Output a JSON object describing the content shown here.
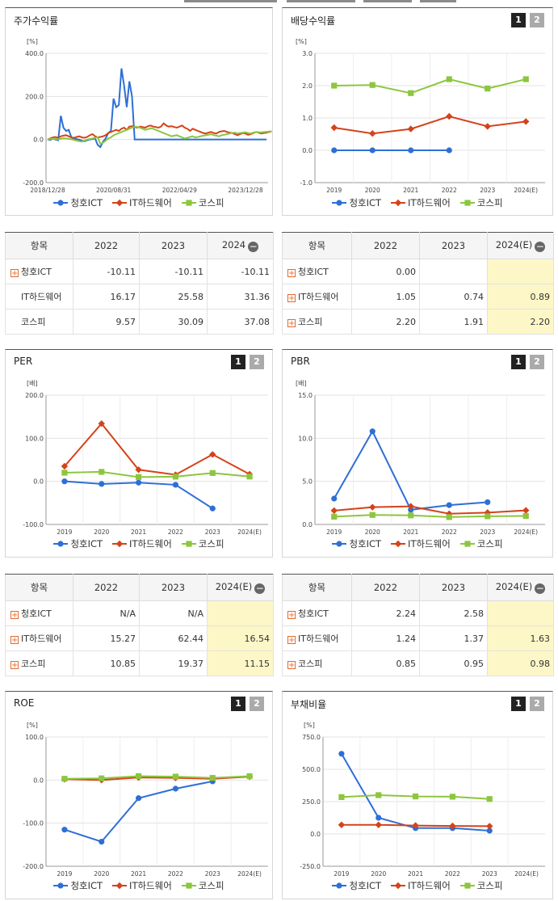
{
  "colors": {
    "blue": "#2e6fd6",
    "red": "#d4431a",
    "green": "#8cc63e"
  },
  "legend": [
    "청호ICT",
    "IT하드웨어",
    "코스피"
  ],
  "pager": [
    "1",
    "2"
  ],
  "collapse_symbol": "−",
  "expand_symbol": "+",
  "price_chart": {
    "title": "주가수익률",
    "unit": "[%]",
    "chart_data": {
      "type": "line",
      "ylim": [
        -200,
        400
      ],
      "yticks": [
        "400.0",
        "200.0",
        "0.0",
        "-200.0"
      ],
      "xticks": [
        "2018/12/28",
        "2020/08/31",
        "2022/04/29",
        "2023/12/28"
      ],
      "series": [
        {
          "name": "청호ICT",
          "values": [
            0,
            -2,
            5,
            0,
            -3,
            110,
            55,
            40,
            45,
            10,
            5,
            2,
            0,
            -5,
            -8,
            -3,
            0,
            2,
            5,
            -25,
            -35,
            -10,
            5,
            30,
            40,
            190,
            150,
            160,
            330,
            250,
            150,
            270,
            200,
            0,
            0,
            0,
            0,
            0,
            0,
            0,
            0,
            0,
            0,
            0,
            0,
            0,
            0,
            0,
            0,
            0,
            0,
            0,
            0,
            0,
            0,
            0,
            0,
            0,
            0,
            0,
            0,
            0,
            0,
            0,
            0,
            0,
            0,
            0,
            0,
            0,
            0,
            0,
            0,
            0,
            0,
            0,
            0,
            0,
            0,
            0,
            0,
            0,
            0,
            0
          ]
        },
        {
          "name": "IT하드웨어",
          "values": [
            0,
            5,
            10,
            12,
            8,
            15,
            18,
            20,
            15,
            10,
            8,
            12,
            15,
            10,
            8,
            12,
            20,
            25,
            15,
            10,
            12,
            15,
            20,
            30,
            35,
            40,
            45,
            40,
            50,
            55,
            45,
            60,
            62,
            58,
            55,
            60,
            58,
            55,
            62,
            65,
            60,
            58,
            55,
            60,
            75,
            65,
            60,
            62,
            58,
            55,
            60,
            65,
            55,
            50,
            40,
            50,
            45,
            40,
            35,
            30,
            28,
            32,
            35,
            30,
            28,
            35,
            38,
            40,
            35,
            32,
            30,
            25,
            20,
            25,
            30,
            28,
            22,
            25,
            30,
            35,
            32,
            28,
            30,
            32,
            35,
            38
          ]
        },
        {
          "name": "코스피",
          "values": [
            0,
            2,
            5,
            3,
            1,
            4,
            6,
            5,
            3,
            1,
            -2,
            -5,
            -8,
            -10,
            -5,
            0,
            2,
            5,
            8,
            10,
            -20,
            -15,
            -5,
            5,
            10,
            20,
            25,
            30,
            35,
            40,
            45,
            50,
            55,
            60,
            58,
            55,
            50,
            45,
            48,
            52,
            50,
            45,
            40,
            35,
            30,
            25,
            20,
            15,
            18,
            20,
            15,
            10,
            5,
            8,
            12,
            15,
            10,
            12,
            15,
            18,
            20,
            22,
            25,
            20,
            18,
            15,
            20,
            22,
            25,
            28,
            30,
            32,
            28,
            30,
            32,
            34,
            30,
            28,
            32,
            35,
            34,
            33,
            35,
            36,
            37,
            38
          ]
        }
      ]
    }
  },
  "dividend_chart": {
    "title": "배당수익률",
    "unit": "[%]",
    "chart_data": {
      "type": "line",
      "categories": [
        "2019",
        "2020",
        "2021",
        "2022",
        "2023",
        "2024(E)"
      ],
      "ylim": [
        -1.0,
        3.0
      ],
      "yticks": [
        "3.0",
        "2.0",
        "1.0",
        "0.0",
        "-1.0"
      ],
      "series": [
        {
          "name": "청호ICT",
          "values": [
            0.0,
            0.0,
            0.0,
            0.0,
            null,
            null
          ]
        },
        {
          "name": "IT하드웨어",
          "values": [
            0.7,
            0.52,
            0.66,
            1.05,
            0.74,
            0.89
          ]
        },
        {
          "name": "코스피",
          "values": [
            2.0,
            2.02,
            1.77,
            2.2,
            1.91,
            2.2
          ]
        }
      ]
    }
  },
  "per_chart": {
    "title": "PER",
    "unit": "[배]",
    "chart_data": {
      "type": "line",
      "categories": [
        "2019",
        "2020",
        "2021",
        "2022",
        "2023",
        "2024(E)"
      ],
      "ylim": [
        -100,
        200
      ],
      "yticks": [
        "200.0",
        "100.0",
        "0.0",
        "-100.0"
      ],
      "series": [
        {
          "name": "청호ICT",
          "values": [
            0,
            -6,
            -3,
            -8,
            -63,
            null
          ]
        },
        {
          "name": "IT하드웨어",
          "values": [
            35,
            134,
            27,
            15.27,
            62.44,
            16.54
          ]
        },
        {
          "name": "코스피",
          "values": [
            20,
            22,
            10,
            10.85,
            19.37,
            11.15
          ]
        }
      ]
    }
  },
  "pbr_chart": {
    "title": "PBR",
    "unit": "[배]",
    "chart_data": {
      "type": "line",
      "categories": [
        "2019",
        "2020",
        "2021",
        "2022",
        "2023",
        "2024(E)"
      ],
      "ylim": [
        0,
        15
      ],
      "yticks": [
        "15.0",
        "10.0",
        "5.0",
        "0.0"
      ],
      "series": [
        {
          "name": "청호ICT",
          "values": [
            3.0,
            10.8,
            1.7,
            2.24,
            2.58,
            null
          ]
        },
        {
          "name": "IT하드웨어",
          "values": [
            1.6,
            2.0,
            2.1,
            1.24,
            1.37,
            1.63
          ]
        },
        {
          "name": "코스피",
          "values": [
            0.9,
            1.1,
            1.05,
            0.85,
            0.95,
            0.98
          ]
        }
      ]
    }
  },
  "roe_chart": {
    "title": "ROE",
    "unit": "[%]",
    "chart_data": {
      "type": "line",
      "categories": [
        "2019",
        "2020",
        "2021",
        "2022",
        "2023",
        "2024(E)"
      ],
      "ylim": [
        -200,
        100
      ],
      "yticks": [
        "100.0",
        "0.0",
        "-100.0",
        "-200.0"
      ],
      "series": [
        {
          "name": "청호ICT",
          "values": [
            -115,
            -143,
            -42,
            -20,
            -3,
            null
          ]
        },
        {
          "name": "IT하드웨어",
          "values": [
            2,
            0,
            6,
            5,
            3,
            8
          ]
        },
        {
          "name": "코스피",
          "values": [
            3,
            4,
            9,
            8,
            5,
            9
          ]
        }
      ]
    }
  },
  "debt_chart": {
    "title": "부채비율",
    "unit": "[%]",
    "chart_data": {
      "type": "line",
      "categories": [
        "2019",
        "2020",
        "2021",
        "2022",
        "2023",
        "2024(E)"
      ],
      "ylim": [
        -250,
        750
      ],
      "yticks": [
        "750.0",
        "500.0",
        "250.0",
        "0.0",
        "-250.0"
      ],
      "series": [
        {
          "name": "청호ICT",
          "values": [
            620,
            125,
            45,
            45,
            25,
            null
          ]
        },
        {
          "name": "IT하드웨어",
          "values": [
            70,
            70,
            65,
            62,
            60,
            null
          ]
        },
        {
          "name": "코스피",
          "values": [
            285,
            300,
            290,
            288,
            270,
            null
          ]
        }
      ]
    }
  },
  "tables": {
    "price": {
      "headers": [
        "항목",
        "2022",
        "2023",
        "2024"
      ],
      "rows": [
        {
          "name": "청호ICT",
          "plus": true,
          "v": [
            "-10.11",
            "-10.11",
            "-10.11"
          ]
        },
        {
          "name": "IT하드웨어",
          "plus": false,
          "v": [
            "16.17",
            "25.58",
            "31.36"
          ]
        },
        {
          "name": "코스피",
          "plus": false,
          "v": [
            "9.57",
            "30.09",
            "37.08"
          ]
        }
      ]
    },
    "dividend": {
      "headers": [
        "항목",
        "2022",
        "2023",
        "2024(E)"
      ],
      "rows": [
        {
          "name": "청호ICT",
          "plus": true,
          "v": [
            "0.00",
            "",
            ""
          ]
        },
        {
          "name": "IT하드웨어",
          "plus": true,
          "v": [
            "1.05",
            "0.74",
            "0.89"
          ]
        },
        {
          "name": "코스피",
          "plus": true,
          "v": [
            "2.20",
            "1.91",
            "2.20"
          ]
        }
      ]
    },
    "per": {
      "headers": [
        "항목",
        "2022",
        "2023",
        "2024(E)"
      ],
      "rows": [
        {
          "name": "청호ICT",
          "plus": true,
          "v": [
            "N/A",
            "N/A",
            ""
          ]
        },
        {
          "name": "IT하드웨어",
          "plus": true,
          "v": [
            "15.27",
            "62.44",
            "16.54"
          ]
        },
        {
          "name": "코스피",
          "plus": true,
          "v": [
            "10.85",
            "19.37",
            "11.15"
          ]
        }
      ]
    },
    "pbr": {
      "headers": [
        "항목",
        "2022",
        "2023",
        "2024(E)"
      ],
      "rows": [
        {
          "name": "청호ICT",
          "plus": true,
          "v": [
            "2.24",
            "2.58",
            ""
          ]
        },
        {
          "name": "IT하드웨어",
          "plus": true,
          "v": [
            "1.24",
            "1.37",
            "1.63"
          ]
        },
        {
          "name": "코스피",
          "plus": true,
          "v": [
            "0.85",
            "0.95",
            "0.98"
          ]
        }
      ]
    }
  }
}
